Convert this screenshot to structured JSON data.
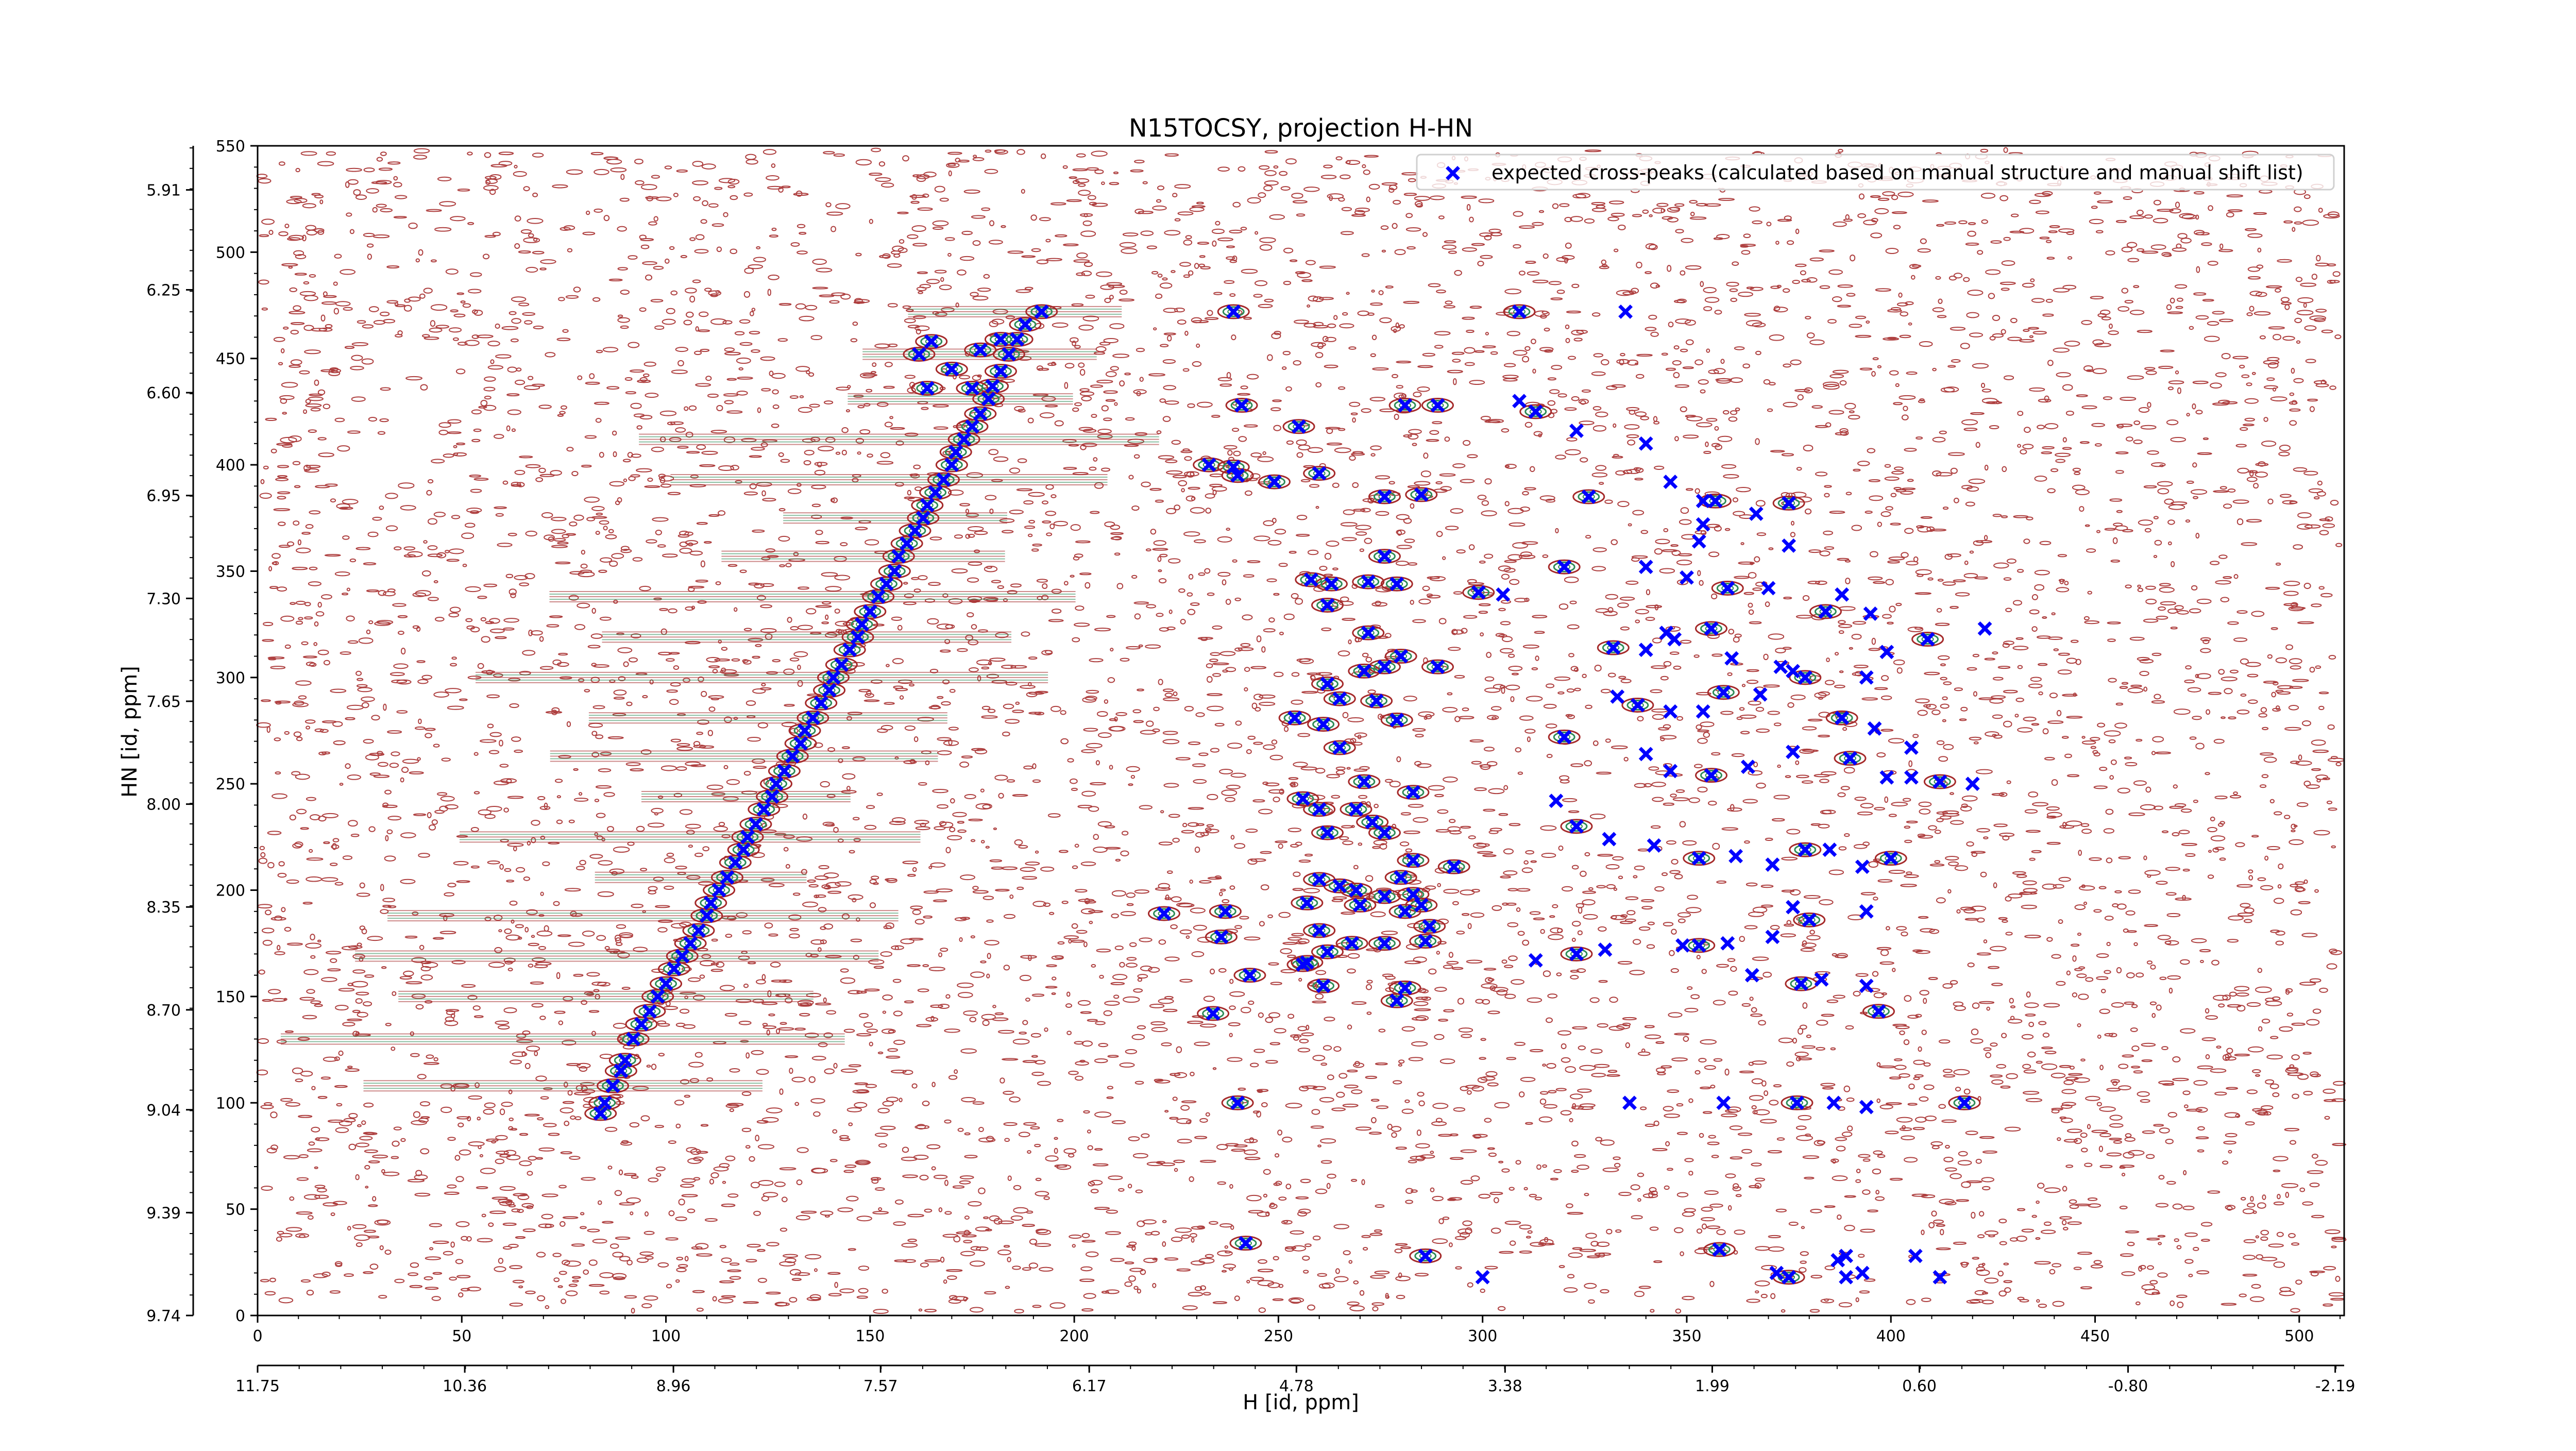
{
  "chart_data": {
    "type": "scatter",
    "title": "N15TOCSY, projection H-HN",
    "xlabel": "H [id, ppm]",
    "ylabel": "HN [id, ppm]",
    "x_index": {
      "range": [
        0,
        511
      ],
      "ticks": [
        "0",
        "50",
        "100",
        "150",
        "200",
        "250",
        "300",
        "350",
        "400",
        "450",
        "500"
      ]
    },
    "x_ppm": {
      "range": [
        11.75,
        -2.25
      ],
      "ticks": [
        "11.75",
        "10.36",
        "8.96",
        "7.57",
        "6.17",
        "4.78",
        "3.38",
        "1.99",
        "0.60",
        "-0.80",
        "-2.19"
      ]
    },
    "y_index": {
      "range": [
        0,
        550
      ],
      "ticks": [
        "0",
        "50",
        "100",
        "150",
        "200",
        "250",
        "300",
        "350",
        "400",
        "450",
        "500",
        "550"
      ]
    },
    "y_ppm": {
      "range": [
        9.74,
        5.76
      ],
      "ticks": [
        "9.74",
        "9.39",
        "9.04",
        "8.70",
        "8.35",
        "8.00",
        "7.65",
        "7.30",
        "6.95",
        "6.60",
        "6.25",
        "5.91"
      ]
    },
    "legend": {
      "position": "top-right",
      "entries": [
        {
          "label": "expected cross-peaks (calculated based on manual structure and manual shift list)",
          "color": "#0000ff",
          "marker": "x"
        }
      ]
    },
    "colors": {
      "negative_contours": "#a52a2a",
      "positive_contours": "#2e8b57",
      "expected_peaks": "#0000ff"
    },
    "grid": false,
    "diagonal_peaks": [
      [
        192,
        472
      ],
      [
        188,
        466
      ],
      [
        186,
        459
      ],
      [
        184,
        452
      ],
      [
        182,
        444
      ],
      [
        180,
        437
      ],
      [
        179,
        431
      ],
      [
        177,
        424
      ],
      [
        175,
        418
      ],
      [
        173,
        412
      ],
      [
        171,
        406
      ],
      [
        170,
        400
      ],
      [
        168,
        393
      ],
      [
        166,
        387
      ],
      [
        164,
        381
      ],
      [
        163,
        375
      ],
      [
        161,
        369
      ],
      [
        159,
        363
      ],
      [
        157,
        357
      ],
      [
        156,
        350
      ],
      [
        154,
        344
      ],
      [
        152,
        338
      ],
      [
        150,
        331
      ],
      [
        148,
        325
      ],
      [
        147,
        319
      ],
      [
        145,
        313
      ],
      [
        143,
        306
      ],
      [
        141,
        300
      ],
      [
        140,
        294
      ],
      [
        138,
        288
      ],
      [
        136,
        281
      ],
      [
        134,
        275
      ],
      [
        133,
        269
      ],
      [
        131,
        263
      ],
      [
        129,
        256
      ],
      [
        127,
        250
      ],
      [
        126,
        244
      ],
      [
        124,
        238
      ],
      [
        122,
        231
      ],
      [
        120,
        225
      ],
      [
        119,
        219
      ],
      [
        117,
        213
      ],
      [
        115,
        206
      ],
      [
        113,
        200
      ],
      [
        111,
        194
      ],
      [
        110,
        188
      ],
      [
        108,
        181
      ],
      [
        106,
        175
      ],
      [
        104,
        169
      ],
      [
        102,
        163
      ],
      [
        100,
        156
      ],
      [
        98,
        150
      ],
      [
        96,
        143
      ],
      [
        94,
        137
      ],
      [
        92,
        130
      ],
      [
        90,
        120
      ],
      [
        89,
        115
      ],
      [
        87,
        108
      ],
      [
        85,
        100
      ],
      [
        84,
        95
      ]
    ],
    "other_peaks": [
      [
        239,
        472
      ],
      [
        165,
        458
      ],
      [
        162,
        452
      ],
      [
        170,
        445
      ],
      [
        164,
        436
      ],
      [
        175,
        436
      ],
      [
        182,
        459
      ],
      [
        177,
        454
      ],
      [
        241,
        428
      ],
      [
        281,
        428
      ],
      [
        289,
        428
      ],
      [
        255,
        418
      ],
      [
        233,
        400
      ],
      [
        239,
        399
      ],
      [
        240,
        395
      ],
      [
        260,
        396
      ],
      [
        249,
        392
      ],
      [
        285,
        386
      ],
      [
        276,
        385
      ],
      [
        276,
        357
      ],
      [
        258,
        346
      ],
      [
        263,
        344
      ],
      [
        272,
        345
      ],
      [
        279,
        344
      ],
      [
        299,
        340
      ],
      [
        305,
        339
      ],
      [
        262,
        334
      ],
      [
        272,
        321
      ],
      [
        280,
        310
      ],
      [
        289,
        305
      ],
      [
        271,
        303
      ],
      [
        276,
        305
      ],
      [
        262,
        297
      ],
      [
        265,
        290
      ],
      [
        274,
        289
      ],
      [
        254,
        281
      ],
      [
        261,
        278
      ],
      [
        279,
        280
      ],
      [
        265,
        267
      ],
      [
        271,
        251
      ],
      [
        283,
        246
      ],
      [
        256,
        243
      ],
      [
        260,
        238
      ],
      [
        269,
        238
      ],
      [
        273,
        232
      ],
      [
        262,
        227
      ],
      [
        276,
        227
      ],
      [
        283,
        214
      ],
      [
        293,
        211
      ],
      [
        283,
        198
      ],
      [
        285,
        193
      ],
      [
        280,
        206
      ],
      [
        260,
        205
      ],
      [
        265,
        202
      ],
      [
        269,
        200
      ],
      [
        276,
        197
      ],
      [
        281,
        190
      ],
      [
        257,
        194
      ],
      [
        270,
        193
      ],
      [
        287,
        183
      ],
      [
        276,
        175
      ],
      [
        286,
        176
      ],
      [
        262,
        171
      ],
      [
        256,
        165
      ],
      [
        257,
        166
      ],
      [
        261,
        155
      ],
      [
        279,
        148
      ],
      [
        281,
        154
      ],
      [
        236,
        178
      ],
      [
        237,
        190
      ],
      [
        260,
        181
      ],
      [
        268,
        175
      ],
      [
        243,
        160
      ],
      [
        222,
        189
      ],
      [
        234,
        142
      ],
      [
        240,
        100
      ],
      [
        242,
        34
      ],
      [
        300,
        18
      ],
      [
        309,
        472
      ],
      [
        335,
        472
      ],
      [
        309,
        430
      ],
      [
        313,
        425
      ],
      [
        323,
        416
      ],
      [
        340,
        410
      ],
      [
        326,
        385
      ],
      [
        346,
        392
      ],
      [
        354,
        383
      ],
      [
        357,
        383
      ],
      [
        354,
        372
      ],
      [
        367,
        377
      ],
      [
        375,
        382
      ],
      [
        375,
        362
      ],
      [
        353,
        364
      ],
      [
        320,
        352
      ],
      [
        340,
        352
      ],
      [
        350,
        347
      ],
      [
        360,
        342
      ],
      [
        370,
        342
      ],
      [
        388,
        339
      ],
      [
        384,
        331
      ],
      [
        395,
        330
      ],
      [
        345,
        321
      ],
      [
        332,
        314
      ],
      [
        340,
        313
      ],
      [
        347,
        318
      ],
      [
        356,
        323
      ],
      [
        361,
        309
      ],
      [
        373,
        305
      ],
      [
        379,
        300
      ],
      [
        394,
        300
      ],
      [
        399,
        312
      ],
      [
        409,
        318
      ],
      [
        423,
        323
      ],
      [
        333,
        291
      ],
      [
        338,
        287
      ],
      [
        346,
        284
      ],
      [
        354,
        284
      ],
      [
        359,
        293
      ],
      [
        368,
        292
      ],
      [
        376,
        303
      ],
      [
        388,
        281
      ],
      [
        396,
        276
      ],
      [
        405,
        267
      ],
      [
        320,
        272
      ],
      [
        340,
        264
      ],
      [
        346,
        256
      ],
      [
        356,
        254
      ],
      [
        365,
        258
      ],
      [
        376,
        265
      ],
      [
        390,
        262
      ],
      [
        399,
        253
      ],
      [
        405,
        253
      ],
      [
        412,
        251
      ],
      [
        420,
        250
      ],
      [
        318,
        242
      ],
      [
        323,
        230
      ],
      [
        331,
        224
      ],
      [
        342,
        221
      ],
      [
        353,
        215
      ],
      [
        362,
        216
      ],
      [
        371,
        212
      ],
      [
        379,
        219
      ],
      [
        385,
        219
      ],
      [
        393,
        211
      ],
      [
        400,
        215
      ],
      [
        394,
        190
      ],
      [
        376,
        192
      ],
      [
        380,
        186
      ],
      [
        371,
        178
      ],
      [
        360,
        175
      ],
      [
        353,
        174
      ],
      [
        349,
        174
      ],
      [
        330,
        172
      ],
      [
        323,
        170
      ],
      [
        313,
        167
      ],
      [
        366,
        160
      ],
      [
        378,
        156
      ],
      [
        383,
        158
      ],
      [
        394,
        155
      ],
      [
        397,
        143
      ],
      [
        336,
        100
      ],
      [
        359,
        100
      ],
      [
        377,
        100
      ],
      [
        386,
        100
      ],
      [
        394,
        98
      ],
      [
        418,
        100
      ],
      [
        389,
        28
      ],
      [
        406,
        28
      ],
      [
        375,
        18
      ],
      [
        389,
        18
      ],
      [
        387,
        26
      ],
      [
        358,
        31
      ],
      [
        393,
        20
      ],
      [
        372,
        20
      ],
      [
        286,
        28
      ],
      [
        412,
        18
      ]
    ]
  }
}
